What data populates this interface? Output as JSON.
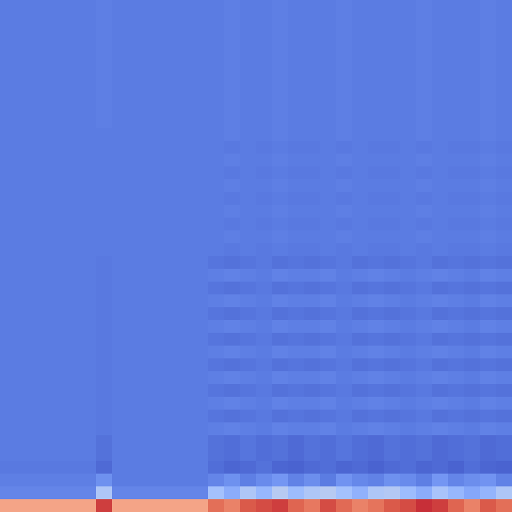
{
  "chart_data": {
    "type": "heatmap",
    "tick_labels": false,
    "zlim": [
      0,
      1
    ],
    "cells": [
      [
        0.13,
        0.13,
        0.13,
        0.13,
        0.13,
        0.13,
        0.14,
        0.13,
        0.13,
        0.13,
        0.13,
        0.13,
        0.13,
        0.13,
        0.14,
        0.13,
        0.13,
        0.14,
        0.13,
        0.13,
        0.13,
        0.14,
        0.13,
        0.13,
        0.13,
        0.13,
        0.14,
        0.13,
        0.13,
        0.13,
        0.14,
        0.13
      ],
      [
        0.13,
        0.13,
        0.13,
        0.13,
        0.13,
        0.13,
        0.14,
        0.13,
        0.13,
        0.13,
        0.13,
        0.13,
        0.13,
        0.13,
        0.14,
        0.13,
        0.13,
        0.14,
        0.13,
        0.13,
        0.13,
        0.14,
        0.13,
        0.13,
        0.13,
        0.13,
        0.14,
        0.13,
        0.13,
        0.13,
        0.14,
        0.13
      ],
      [
        0.13,
        0.13,
        0.13,
        0.13,
        0.13,
        0.13,
        0.14,
        0.13,
        0.13,
        0.13,
        0.13,
        0.13,
        0.13,
        0.13,
        0.14,
        0.13,
        0.13,
        0.14,
        0.13,
        0.13,
        0.13,
        0.14,
        0.13,
        0.13,
        0.13,
        0.13,
        0.14,
        0.13,
        0.13,
        0.13,
        0.14,
        0.13
      ],
      [
        0.13,
        0.13,
        0.13,
        0.13,
        0.13,
        0.13,
        0.14,
        0.13,
        0.13,
        0.13,
        0.13,
        0.13,
        0.13,
        0.13,
        0.14,
        0.13,
        0.13,
        0.14,
        0.13,
        0.13,
        0.13,
        0.14,
        0.13,
        0.13,
        0.13,
        0.13,
        0.14,
        0.13,
        0.13,
        0.13,
        0.14,
        0.13
      ],
      [
        0.13,
        0.13,
        0.13,
        0.13,
        0.13,
        0.13,
        0.14,
        0.13,
        0.13,
        0.13,
        0.13,
        0.13,
        0.13,
        0.13,
        0.14,
        0.13,
        0.13,
        0.14,
        0.13,
        0.13,
        0.13,
        0.14,
        0.13,
        0.13,
        0.13,
        0.13,
        0.14,
        0.13,
        0.13,
        0.13,
        0.14,
        0.13
      ],
      [
        0.13,
        0.13,
        0.13,
        0.13,
        0.13,
        0.13,
        0.14,
        0.13,
        0.13,
        0.13,
        0.13,
        0.13,
        0.13,
        0.13,
        0.14,
        0.13,
        0.13,
        0.14,
        0.13,
        0.13,
        0.13,
        0.14,
        0.13,
        0.13,
        0.13,
        0.13,
        0.14,
        0.13,
        0.13,
        0.13,
        0.14,
        0.13
      ],
      [
        0.13,
        0.13,
        0.13,
        0.13,
        0.13,
        0.13,
        0.14,
        0.13,
        0.13,
        0.13,
        0.13,
        0.13,
        0.13,
        0.13,
        0.14,
        0.13,
        0.13,
        0.14,
        0.13,
        0.13,
        0.13,
        0.14,
        0.13,
        0.13,
        0.13,
        0.13,
        0.14,
        0.13,
        0.13,
        0.13,
        0.14,
        0.13
      ],
      [
        0.13,
        0.13,
        0.13,
        0.13,
        0.13,
        0.13,
        0.14,
        0.13,
        0.13,
        0.13,
        0.13,
        0.13,
        0.13,
        0.13,
        0.14,
        0.13,
        0.13,
        0.14,
        0.13,
        0.13,
        0.13,
        0.14,
        0.13,
        0.13,
        0.13,
        0.13,
        0.14,
        0.13,
        0.13,
        0.13,
        0.14,
        0.13
      ],
      [
        0.13,
        0.13,
        0.13,
        0.13,
        0.13,
        0.13,
        0.14,
        0.13,
        0.13,
        0.13,
        0.13,
        0.13,
        0.13,
        0.13,
        0.14,
        0.13,
        0.13,
        0.14,
        0.13,
        0.13,
        0.13,
        0.14,
        0.13,
        0.13,
        0.13,
        0.13,
        0.14,
        0.13,
        0.13,
        0.13,
        0.14,
        0.13
      ],
      [
        0.13,
        0.13,
        0.13,
        0.13,
        0.13,
        0.13,
        0.14,
        0.13,
        0.13,
        0.13,
        0.13,
        0.13,
        0.13,
        0.13,
        0.14,
        0.13,
        0.13,
        0.14,
        0.13,
        0.13,
        0.13,
        0.14,
        0.13,
        0.13,
        0.13,
        0.13,
        0.14,
        0.13,
        0.13,
        0.13,
        0.14,
        0.13
      ],
      [
        0.13,
        0.13,
        0.13,
        0.13,
        0.13,
        0.13,
        0.13,
        0.13,
        0.13,
        0.13,
        0.13,
        0.13,
        0.13,
        0.13,
        0.14,
        0.13,
        0.13,
        0.14,
        0.13,
        0.13,
        0.13,
        0.14,
        0.13,
        0.13,
        0.13,
        0.13,
        0.14,
        0.13,
        0.13,
        0.13,
        0.14,
        0.13
      ],
      [
        0.13,
        0.13,
        0.13,
        0.13,
        0.13,
        0.13,
        0.13,
        0.13,
        0.13,
        0.13,
        0.13,
        0.13,
        0.13,
        0.13,
        0.12,
        0.13,
        0.12,
        0.13,
        0.12,
        0.12,
        0.13,
        0.12,
        0.13,
        0.12,
        0.12,
        0.13,
        0.12,
        0.13,
        0.12,
        0.12,
        0.13,
        0.12
      ],
      [
        0.13,
        0.13,
        0.13,
        0.13,
        0.13,
        0.13,
        0.13,
        0.13,
        0.13,
        0.13,
        0.13,
        0.13,
        0.13,
        0.13,
        0.14,
        0.13,
        0.13,
        0.14,
        0.13,
        0.13,
        0.13,
        0.14,
        0.13,
        0.13,
        0.13,
        0.13,
        0.14,
        0.13,
        0.13,
        0.13,
        0.14,
        0.13
      ],
      [
        0.13,
        0.13,
        0.13,
        0.13,
        0.13,
        0.13,
        0.13,
        0.13,
        0.13,
        0.13,
        0.13,
        0.13,
        0.13,
        0.13,
        0.12,
        0.13,
        0.12,
        0.13,
        0.12,
        0.12,
        0.13,
        0.12,
        0.13,
        0.12,
        0.12,
        0.13,
        0.12,
        0.13,
        0.12,
        0.12,
        0.13,
        0.12
      ],
      [
        0.13,
        0.13,
        0.13,
        0.13,
        0.13,
        0.13,
        0.13,
        0.13,
        0.13,
        0.13,
        0.13,
        0.13,
        0.13,
        0.13,
        0.14,
        0.13,
        0.13,
        0.14,
        0.13,
        0.13,
        0.13,
        0.14,
        0.13,
        0.13,
        0.13,
        0.13,
        0.14,
        0.13,
        0.13,
        0.13,
        0.14,
        0.13
      ],
      [
        0.13,
        0.13,
        0.13,
        0.13,
        0.13,
        0.13,
        0.13,
        0.13,
        0.13,
        0.13,
        0.13,
        0.13,
        0.13,
        0.13,
        0.12,
        0.13,
        0.12,
        0.13,
        0.12,
        0.12,
        0.13,
        0.12,
        0.13,
        0.12,
        0.12,
        0.13,
        0.12,
        0.13,
        0.12,
        0.12,
        0.13,
        0.12
      ],
      [
        0.13,
        0.13,
        0.13,
        0.13,
        0.13,
        0.13,
        0.13,
        0.13,
        0.13,
        0.13,
        0.13,
        0.13,
        0.13,
        0.13,
        0.14,
        0.13,
        0.13,
        0.14,
        0.13,
        0.13,
        0.13,
        0.14,
        0.13,
        0.13,
        0.13,
        0.13,
        0.14,
        0.13,
        0.13,
        0.13,
        0.14,
        0.13
      ],
      [
        0.13,
        0.13,
        0.13,
        0.13,
        0.13,
        0.13,
        0.13,
        0.13,
        0.13,
        0.13,
        0.13,
        0.13,
        0.13,
        0.13,
        0.12,
        0.13,
        0.12,
        0.13,
        0.12,
        0.12,
        0.13,
        0.12,
        0.13,
        0.12,
        0.12,
        0.13,
        0.12,
        0.13,
        0.12,
        0.12,
        0.13,
        0.12
      ],
      [
        0.13,
        0.13,
        0.13,
        0.13,
        0.13,
        0.13,
        0.13,
        0.13,
        0.13,
        0.13,
        0.13,
        0.13,
        0.13,
        0.13,
        0.14,
        0.13,
        0.13,
        0.14,
        0.13,
        0.13,
        0.13,
        0.14,
        0.13,
        0.13,
        0.13,
        0.13,
        0.14,
        0.13,
        0.13,
        0.13,
        0.14,
        0.13
      ],
      [
        0.13,
        0.13,
        0.13,
        0.13,
        0.13,
        0.13,
        0.13,
        0.13,
        0.13,
        0.13,
        0.13,
        0.13,
        0.13,
        0.13,
        0.12,
        0.13,
        0.12,
        0.13,
        0.12,
        0.12,
        0.13,
        0.12,
        0.13,
        0.12,
        0.12,
        0.13,
        0.12,
        0.13,
        0.12,
        0.12,
        0.13,
        0.12
      ],
      [
        0.13,
        0.13,
        0.13,
        0.13,
        0.13,
        0.13,
        0.12,
        0.13,
        0.13,
        0.13,
        0.13,
        0.13,
        0.13,
        0.11,
        0.1,
        0.11,
        0.12,
        0.1,
        0.11,
        0.1,
        0.11,
        0.12,
        0.1,
        0.11,
        0.1,
        0.11,
        0.12,
        0.1,
        0.11,
        0.1,
        0.11,
        0.1
      ],
      [
        0.13,
        0.13,
        0.13,
        0.13,
        0.13,
        0.13,
        0.12,
        0.13,
        0.13,
        0.13,
        0.13,
        0.13,
        0.13,
        0.14,
        0.15,
        0.14,
        0.13,
        0.15,
        0.14,
        0.14,
        0.15,
        0.13,
        0.14,
        0.15,
        0.14,
        0.13,
        0.14,
        0.15,
        0.14,
        0.13,
        0.15,
        0.14
      ],
      [
        0.13,
        0.13,
        0.13,
        0.13,
        0.13,
        0.13,
        0.12,
        0.13,
        0.13,
        0.13,
        0.13,
        0.13,
        0.13,
        0.11,
        0.1,
        0.11,
        0.12,
        0.1,
        0.11,
        0.1,
        0.11,
        0.12,
        0.1,
        0.11,
        0.1,
        0.11,
        0.12,
        0.1,
        0.11,
        0.1,
        0.11,
        0.1
      ],
      [
        0.13,
        0.13,
        0.13,
        0.13,
        0.13,
        0.13,
        0.12,
        0.13,
        0.13,
        0.13,
        0.13,
        0.13,
        0.13,
        0.14,
        0.15,
        0.14,
        0.13,
        0.15,
        0.14,
        0.14,
        0.15,
        0.13,
        0.14,
        0.15,
        0.14,
        0.13,
        0.14,
        0.15,
        0.14,
        0.13,
        0.15,
        0.14
      ],
      [
        0.13,
        0.13,
        0.13,
        0.13,
        0.13,
        0.13,
        0.12,
        0.13,
        0.13,
        0.13,
        0.13,
        0.13,
        0.13,
        0.11,
        0.1,
        0.11,
        0.12,
        0.1,
        0.11,
        0.1,
        0.11,
        0.12,
        0.1,
        0.11,
        0.1,
        0.11,
        0.12,
        0.1,
        0.11,
        0.1,
        0.11,
        0.1
      ],
      [
        0.13,
        0.13,
        0.13,
        0.13,
        0.13,
        0.13,
        0.12,
        0.13,
        0.13,
        0.13,
        0.13,
        0.13,
        0.13,
        0.14,
        0.15,
        0.14,
        0.13,
        0.15,
        0.14,
        0.14,
        0.15,
        0.13,
        0.14,
        0.15,
        0.14,
        0.13,
        0.14,
        0.15,
        0.14,
        0.13,
        0.15,
        0.14
      ],
      [
        0.13,
        0.13,
        0.13,
        0.13,
        0.13,
        0.13,
        0.12,
        0.13,
        0.13,
        0.13,
        0.13,
        0.13,
        0.13,
        0.11,
        0.1,
        0.11,
        0.12,
        0.1,
        0.11,
        0.1,
        0.11,
        0.12,
        0.1,
        0.11,
        0.1,
        0.11,
        0.12,
        0.1,
        0.11,
        0.1,
        0.11,
        0.1
      ],
      [
        0.13,
        0.13,
        0.13,
        0.13,
        0.13,
        0.13,
        0.12,
        0.13,
        0.13,
        0.13,
        0.13,
        0.13,
        0.13,
        0.14,
        0.15,
        0.14,
        0.13,
        0.15,
        0.14,
        0.14,
        0.15,
        0.13,
        0.14,
        0.15,
        0.14,
        0.13,
        0.14,
        0.15,
        0.14,
        0.13,
        0.15,
        0.14
      ],
      [
        0.13,
        0.13,
        0.13,
        0.13,
        0.13,
        0.13,
        0.12,
        0.13,
        0.13,
        0.13,
        0.13,
        0.13,
        0.13,
        0.11,
        0.1,
        0.11,
        0.12,
        0.1,
        0.11,
        0.1,
        0.11,
        0.12,
        0.1,
        0.11,
        0.1,
        0.11,
        0.12,
        0.1,
        0.11,
        0.1,
        0.11,
        0.1
      ],
      [
        0.13,
        0.13,
        0.13,
        0.13,
        0.13,
        0.13,
        0.12,
        0.13,
        0.13,
        0.13,
        0.13,
        0.13,
        0.13,
        0.14,
        0.15,
        0.14,
        0.13,
        0.15,
        0.14,
        0.14,
        0.15,
        0.13,
        0.14,
        0.15,
        0.14,
        0.13,
        0.14,
        0.15,
        0.14,
        0.13,
        0.15,
        0.14
      ],
      [
        0.13,
        0.13,
        0.13,
        0.13,
        0.13,
        0.13,
        0.12,
        0.13,
        0.13,
        0.13,
        0.13,
        0.13,
        0.13,
        0.11,
        0.1,
        0.11,
        0.12,
        0.1,
        0.11,
        0.1,
        0.11,
        0.12,
        0.1,
        0.11,
        0.1,
        0.11,
        0.12,
        0.1,
        0.11,
        0.1,
        0.11,
        0.1
      ],
      [
        0.13,
        0.13,
        0.13,
        0.13,
        0.13,
        0.13,
        0.12,
        0.13,
        0.13,
        0.13,
        0.13,
        0.13,
        0.13,
        0.14,
        0.15,
        0.14,
        0.13,
        0.15,
        0.14,
        0.14,
        0.15,
        0.13,
        0.14,
        0.15,
        0.14,
        0.13,
        0.14,
        0.15,
        0.14,
        0.13,
        0.15,
        0.14
      ],
      [
        0.13,
        0.13,
        0.13,
        0.13,
        0.13,
        0.13,
        0.12,
        0.13,
        0.13,
        0.13,
        0.13,
        0.13,
        0.13,
        0.11,
        0.1,
        0.11,
        0.12,
        0.1,
        0.11,
        0.1,
        0.11,
        0.12,
        0.1,
        0.11,
        0.1,
        0.11,
        0.12,
        0.1,
        0.11,
        0.1,
        0.11,
        0.1
      ],
      [
        0.13,
        0.13,
        0.13,
        0.13,
        0.13,
        0.13,
        0.12,
        0.13,
        0.13,
        0.13,
        0.13,
        0.13,
        0.13,
        0.14,
        0.15,
        0.14,
        0.13,
        0.15,
        0.14,
        0.14,
        0.15,
        0.13,
        0.14,
        0.15,
        0.14,
        0.13,
        0.14,
        0.15,
        0.14,
        0.13,
        0.15,
        0.14
      ],
      [
        0.13,
        0.13,
        0.13,
        0.13,
        0.13,
        0.13,
        0.1,
        0.13,
        0.13,
        0.13,
        0.13,
        0.13,
        0.13,
        0.1,
        0.09,
        0.11,
        0.09,
        0.1,
        0.08,
        0.1,
        0.09,
        0.11,
        0.09,
        0.08,
        0.1,
        0.09,
        0.1,
        0.08,
        0.09,
        0.1,
        0.08,
        0.09
      ],
      [
        0.13,
        0.13,
        0.13,
        0.13,
        0.13,
        0.13,
        0.1,
        0.13,
        0.13,
        0.13,
        0.13,
        0.13,
        0.13,
        0.1,
        0.09,
        0.11,
        0.09,
        0.1,
        0.08,
        0.1,
        0.09,
        0.11,
        0.09,
        0.08,
        0.1,
        0.09,
        0.1,
        0.08,
        0.09,
        0.1,
        0.08,
        0.09
      ],
      [
        0.12,
        0.12,
        0.12,
        0.12,
        0.12,
        0.12,
        0.08,
        0.13,
        0.13,
        0.13,
        0.13,
        0.13,
        0.13,
        0.09,
        0.07,
        0.08,
        0.1,
        0.07,
        0.06,
        0.08,
        0.09,
        0.07,
        0.08,
        0.06,
        0.08,
        0.09,
        0.07,
        0.08,
        0.06,
        0.09,
        0.07,
        0.06
      ],
      [
        0.14,
        0.14,
        0.14,
        0.14,
        0.14,
        0.14,
        0.2,
        0.13,
        0.13,
        0.13,
        0.13,
        0.13,
        0.13,
        0.16,
        0.2,
        0.14,
        0.18,
        0.22,
        0.15,
        0.19,
        0.13,
        0.21,
        0.17,
        0.15,
        0.2,
        0.18,
        0.14,
        0.22,
        0.16,
        0.19,
        0.21,
        0.15
      ],
      [
        0.16,
        0.16,
        0.16,
        0.16,
        0.16,
        0.16,
        0.4,
        0.16,
        0.16,
        0.16,
        0.16,
        0.16,
        0.16,
        0.38,
        0.3,
        0.4,
        0.34,
        0.42,
        0.36,
        0.4,
        0.42,
        0.38,
        0.32,
        0.4,
        0.41,
        0.36,
        0.3,
        0.39,
        0.34,
        0.28,
        0.33,
        0.4
      ],
      [
        0.72,
        0.72,
        0.72,
        0.72,
        0.72,
        0.72,
        0.92,
        0.72,
        0.72,
        0.72,
        0.72,
        0.72,
        0.72,
        0.84,
        0.8,
        0.88,
        0.9,
        0.92,
        0.86,
        0.82,
        0.9,
        0.85,
        0.8,
        0.83,
        0.88,
        0.9,
        0.94,
        0.92,
        0.86,
        0.8,
        0.88,
        0.84
      ]
    ]
  }
}
